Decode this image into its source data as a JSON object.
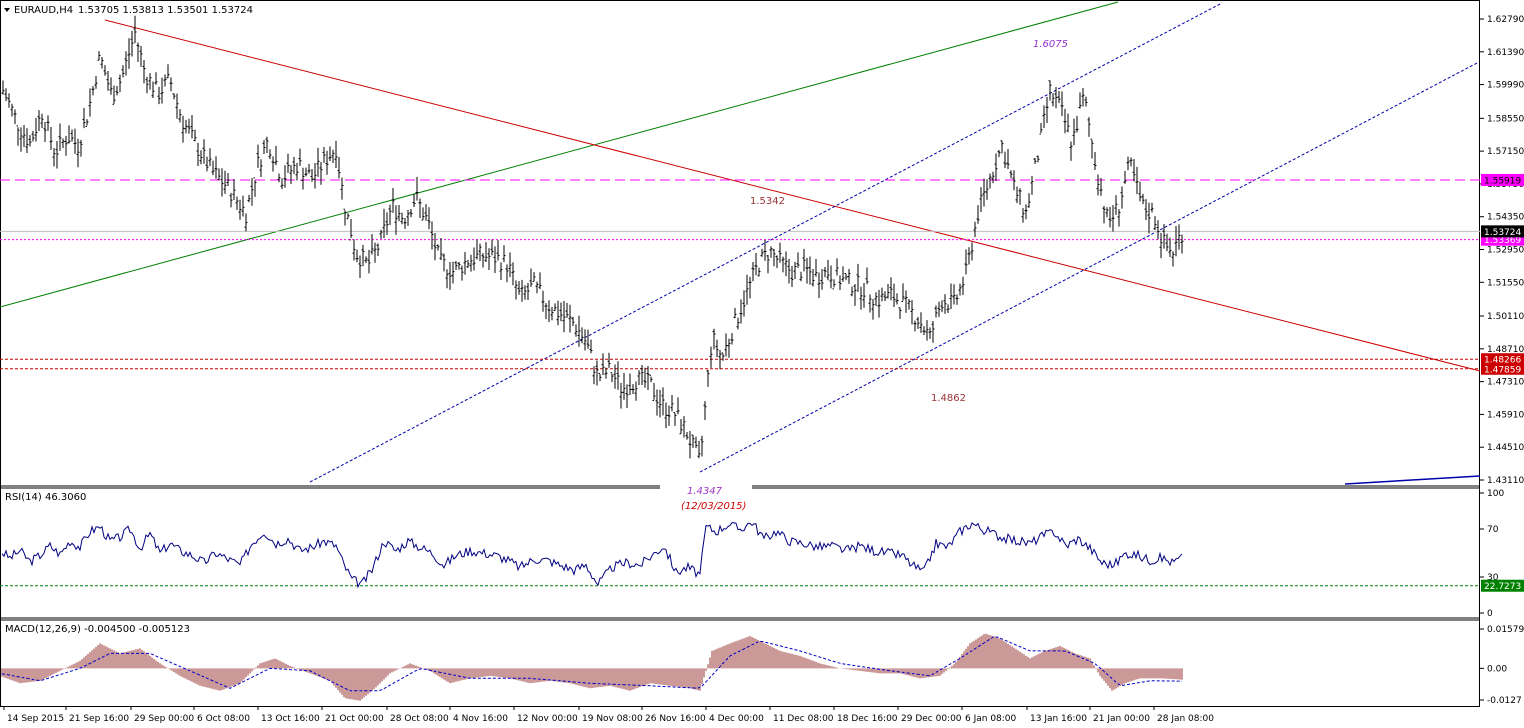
{
  "header": {
    "symbol": "EURAUD,H4",
    "ohlc": "1.53705 1.53813 1.53501 1.53724",
    "rsi_label": "RSI(14) 46.3060",
    "macd_label": "MACD(12,26,9) -0.004500 -0.005123"
  },
  "chart_data": {
    "type": "line",
    "instrument": "EURAUD",
    "timeframe": "H4",
    "price_axis": {
      "ylim": [
        1.4311,
        1.6279
      ],
      "ticks": [
        "1.62790",
        "1.61390",
        "1.59990",
        "1.58550",
        "1.57150",
        "1.55750",
        "1.54350",
        "1.52950",
        "1.51550",
        "1.50110",
        "1.48710",
        "1.47310",
        "1.45910",
        "1.44510",
        "1.43110"
      ],
      "tick_values": [
        1.6279,
        1.6139,
        1.5999,
        1.5855,
        1.5715,
        1.5575,
        1.5435,
        1.5295,
        1.5155,
        1.5011,
        1.4871,
        1.4731,
        1.4591,
        1.4451,
        1.4311
      ]
    },
    "x_ticks": [
      "14 Sep 2015",
      "21 Sep 16:00",
      "29 Sep 00:00",
      "6 Oct 08:00",
      "13 Oct 16:00",
      "21 Oct 00:00",
      "28 Oct 08:00",
      "4 Nov 16:00",
      "12 Nov 00:00",
      "19 Nov 08:00",
      "26 Nov 16:00",
      "4 Dec 00:00",
      "11 Dec 08:00",
      "18 Dec 16:00",
      "29 Dec 00:00",
      "6 Jan 08:00",
      "13 Jan 16:00",
      "21 Jan 00:00",
      "28 Jan 08:00"
    ],
    "price_path": [
      [
        0,
        1.6
      ],
      [
        8,
        1.593
      ],
      [
        18,
        1.583
      ],
      [
        30,
        1.575
      ],
      [
        42,
        1.588
      ],
      [
        55,
        1.571
      ],
      [
        68,
        1.578
      ],
      [
        78,
        1.574
      ],
      [
        88,
        1.588
      ],
      [
        100,
        1.612
      ],
      [
        112,
        1.595
      ],
      [
        122,
        1.603
      ],
      [
        135,
        1.622
      ],
      [
        145,
        1.605
      ],
      [
        158,
        1.596
      ],
      [
        170,
        1.602
      ],
      [
        182,
        1.585
      ],
      [
        196,
        1.574
      ],
      [
        212,
        1.563
      ],
      [
        228,
        1.556
      ],
      [
        246,
        1.545
      ],
      [
        258,
        1.566
      ],
      [
        268,
        1.576
      ],
      [
        282,
        1.56
      ],
      [
        298,
        1.566
      ],
      [
        312,
        1.56
      ],
      [
        326,
        1.568
      ],
      [
        336,
        1.573
      ],
      [
        344,
        1.55
      ],
      [
        356,
        1.528
      ],
      [
        368,
        1.523
      ],
      [
        380,
        1.532
      ],
      [
        392,
        1.548
      ],
      [
        404,
        1.543
      ],
      [
        416,
        1.552
      ],
      [
        428,
        1.541
      ],
      [
        440,
        1.524
      ],
      [
        454,
        1.52
      ],
      [
        468,
        1.525
      ],
      [
        482,
        1.527
      ],
      [
        496,
        1.526
      ],
      [
        508,
        1.523
      ],
      [
        520,
        1.509
      ],
      [
        534,
        1.514
      ],
      [
        548,
        1.506
      ],
      [
        560,
        1.502
      ],
      [
        574,
        1.498
      ],
      [
        586,
        1.49
      ],
      [
        598,
        1.475
      ],
      [
        610,
        1.478
      ],
      [
        622,
        1.47
      ],
      [
        636,
        1.474
      ],
      [
        650,
        1.472
      ],
      [
        662,
        1.463
      ],
      [
        674,
        1.46
      ],
      [
        686,
        1.452
      ],
      [
        700,
        1.438
      ],
      [
        706,
        1.466
      ],
      [
        712,
        1.492
      ],
      [
        722,
        1.483
      ],
      [
        734,
        1.497
      ],
      [
        746,
        1.51
      ],
      [
        758,
        1.523
      ],
      [
        770,
        1.529
      ],
      [
        780,
        1.524
      ],
      [
        792,
        1.52
      ],
      [
        804,
        1.521
      ],
      [
        816,
        1.518
      ],
      [
        828,
        1.52
      ],
      [
        840,
        1.517
      ],
      [
        852,
        1.515
      ],
      [
        864,
        1.513
      ],
      [
        878,
        1.508
      ],
      [
        892,
        1.51
      ],
      [
        904,
        1.506
      ],
      [
        918,
        1.5
      ],
      [
        930,
        1.492
      ],
      [
        942,
        1.508
      ],
      [
        954,
        1.506
      ],
      [
        966,
        1.519
      ],
      [
        978,
        1.545
      ],
      [
        990,
        1.56
      ],
      [
        1002,
        1.574
      ],
      [
        1014,
        1.556
      ],
      [
        1026,
        1.545
      ],
      [
        1038,
        1.57
      ],
      [
        1050,
        1.597
      ],
      [
        1060,
        1.59
      ],
      [
        1072,
        1.575
      ],
      [
        1084,
        1.595
      ],
      [
        1096,
        1.565
      ],
      [
        1108,
        1.541
      ],
      [
        1118,
        1.547
      ],
      [
        1130,
        1.566
      ],
      [
        1142,
        1.548
      ],
      [
        1154,
        1.544
      ],
      [
        1164,
        1.532
      ],
      [
        1172,
        1.528
      ],
      [
        1182,
        1.537
      ]
    ],
    "horizontal_lines": [
      {
        "value": 1.55919,
        "label": "1.55919",
        "style": "dashed-magenta"
      },
      {
        "value": 1.53369,
        "label": "1.53369",
        "style": "dotted-magenta"
      },
      {
        "value": 1.53724,
        "label": "1.53724",
        "style": "current-price"
      },
      {
        "value": 1.48266,
        "label": "1.48266",
        "style": "dashed-red"
      },
      {
        "value": 1.47859,
        "label": "1.47859",
        "style": "dashed-red"
      }
    ],
    "annotations": [
      {
        "text": "1.6075",
        "color": "#9933cc",
        "italic": true
      },
      {
        "text": "1.5342",
        "color": "#993333",
        "italic": false
      },
      {
        "text": "1.4862",
        "color": "#993333",
        "italic": false
      },
      {
        "text": "1.4347",
        "color": "#9933cc",
        "italic": true
      },
      {
        "text": "(12/03/2015)",
        "color": "#cc0000",
        "italic": true
      }
    ],
    "rsi": {
      "ticks": [
        "100",
        "70",
        "30",
        "0"
      ],
      "tick_values": [
        100,
        70,
        30,
        0
      ],
      "level": 22.7273,
      "level_label": "22.7273",
      "current": 46.306,
      "path": [
        [
          0,
          52
        ],
        [
          10,
          46
        ],
        [
          20,
          52
        ],
        [
          30,
          43
        ],
        [
          40,
          48
        ],
        [
          50,
          56
        ],
        [
          60,
          49
        ],
        [
          70,
          60
        ],
        [
          80,
          55
        ],
        [
          90,
          68
        ],
        [
          100,
          72
        ],
        [
          110,
          60
        ],
        [
          120,
          63
        ],
        [
          130,
          70
        ],
        [
          140,
          54
        ],
        [
          150,
          66
        ],
        [
          160,
          50
        ],
        [
          170,
          58
        ],
        [
          180,
          52
        ],
        [
          192,
          48
        ],
        [
          204,
          42
        ],
        [
          216,
          50
        ],
        [
          228,
          45
        ],
        [
          240,
          40
        ],
        [
          252,
          58
        ],
        [
          264,
          68
        ],
        [
          276,
          58
        ],
        [
          288,
          62
        ],
        [
          300,
          52
        ],
        [
          312,
          55
        ],
        [
          324,
          60
        ],
        [
          336,
          56
        ],
        [
          344,
          40
        ],
        [
          352,
          28
        ],
        [
          362,
          24
        ],
        [
          372,
          36
        ],
        [
          384,
          60
        ],
        [
          396,
          52
        ],
        [
          408,
          60
        ],
        [
          420,
          55
        ],
        [
          432,
          50
        ],
        [
          444,
          40
        ],
        [
          456,
          48
        ],
        [
          470,
          52
        ],
        [
          484,
          50
        ],
        [
          496,
          48
        ],
        [
          508,
          44
        ],
        [
          520,
          38
        ],
        [
          534,
          45
        ],
        [
          548,
          44
        ],
        [
          560,
          40
        ],
        [
          574,
          36
        ],
        [
          586,
          40
        ],
        [
          598,
          24
        ],
        [
          612,
          38
        ],
        [
          626,
          42
        ],
        [
          640,
          40
        ],
        [
          652,
          48
        ],
        [
          664,
          56
        ],
        [
          676,
          34
        ],
        [
          688,
          38
        ],
        [
          700,
          32
        ],
        [
          706,
          72
        ],
        [
          716,
          68
        ],
        [
          728,
          74
        ],
        [
          740,
          70
        ],
        [
          752,
          76
        ],
        [
          764,
          62
        ],
        [
          776,
          68
        ],
        [
          790,
          60
        ],
        [
          804,
          58
        ],
        [
          818,
          55
        ],
        [
          832,
          56
        ],
        [
          846,
          52
        ],
        [
          860,
          56
        ],
        [
          874,
          52
        ],
        [
          888,
          50
        ],
        [
          902,
          48
        ],
        [
          912,
          40
        ],
        [
          924,
          34
        ],
        [
          936,
          58
        ],
        [
          948,
          55
        ],
        [
          960,
          68
        ],
        [
          972,
          75
        ],
        [
          982,
          70
        ],
        [
          994,
          66
        ],
        [
          1006,
          62
        ],
        [
          1018,
          60
        ],
        [
          1030,
          58
        ],
        [
          1042,
          64
        ],
        [
          1054,
          68
        ],
        [
          1066,
          56
        ],
        [
          1078,
          62
        ],
        [
          1090,
          54
        ],
        [
          1102,
          42
        ],
        [
          1114,
          40
        ],
        [
          1126,
          50
        ],
        [
          1138,
          48
        ],
        [
          1150,
          44
        ],
        [
          1162,
          46
        ],
        [
          1172,
          42
        ],
        [
          1182,
          46
        ]
      ]
    },
    "macd": {
      "ticks": [
        "0.01579",
        "0.00",
        "-0.0127"
      ],
      "tick_values": [
        0.01579,
        0,
        -0.0127
      ],
      "current_main": -0.0045,
      "current_signal": -0.005123,
      "hist_path": [
        [
          0,
          -0.003
        ],
        [
          20,
          -0.006
        ],
        [
          40,
          -0.005
        ],
        [
          60,
          -0.001
        ],
        [
          80,
          0.003
        ],
        [
          100,
          0.01
        ],
        [
          120,
          0.006
        ],
        [
          140,
          0.008
        ],
        [
          160,
          0.002
        ],
        [
          180,
          -0.003
        ],
        [
          200,
          -0.007
        ],
        [
          220,
          -0.009
        ],
        [
          240,
          -0.006
        ],
        [
          260,
          0.002
        ],
        [
          275,
          0.004
        ],
        [
          290,
          0.001
        ],
        [
          310,
          -0.002
        ],
        [
          330,
          -0.005
        ],
        [
          345,
          -0.012
        ],
        [
          360,
          -0.013
        ],
        [
          375,
          -0.008
        ],
        [
          390,
          -0.002
        ],
        [
          410,
          0.002
        ],
        [
          430,
          -0.001
        ],
        [
          450,
          -0.006
        ],
        [
          470,
          -0.004
        ],
        [
          490,
          -0.003
        ],
        [
          510,
          -0.004
        ],
        [
          530,
          -0.006
        ],
        [
          550,
          -0.005
        ],
        [
          570,
          -0.006
        ],
        [
          590,
          -0.008
        ],
        [
          610,
          -0.007
        ],
        [
          630,
          -0.009
        ],
        [
          650,
          -0.006
        ],
        [
          670,
          -0.007
        ],
        [
          690,
          -0.008
        ],
        [
          700,
          -0.009
        ],
        [
          712,
          0.007
        ],
        [
          730,
          0.01
        ],
        [
          750,
          0.013
        ],
        [
          765,
          0.01
        ],
        [
          780,
          0.007
        ],
        [
          800,
          0.005
        ],
        [
          820,
          0.002
        ],
        [
          840,
          0.0
        ],
        [
          860,
          -0.001
        ],
        [
          880,
          -0.002
        ],
        [
          900,
          -0.002
        ],
        [
          920,
          -0.004
        ],
        [
          940,
          -0.003
        ],
        [
          955,
          0.002
        ],
        [
          970,
          0.01
        ],
        [
          985,
          0.014
        ],
        [
          1000,
          0.012
        ],
        [
          1015,
          0.008
        ],
        [
          1030,
          0.004
        ],
        [
          1045,
          0.007
        ],
        [
          1060,
          0.009
        ],
        [
          1075,
          0.006
        ],
        [
          1090,
          0.004
        ],
        [
          1100,
          -0.003
        ],
        [
          1112,
          -0.009
        ],
        [
          1125,
          -0.006
        ],
        [
          1140,
          -0.004
        ],
        [
          1160,
          -0.004
        ],
        [
          1182,
          -0.0045
        ]
      ],
      "signal_path": [
        [
          0,
          -0.002
        ],
        [
          40,
          -0.005
        ],
        [
          80,
          0.0
        ],
        [
          110,
          0.006
        ],
        [
          150,
          0.006
        ],
        [
          190,
          -0.001
        ],
        [
          230,
          -0.008
        ],
        [
          270,
          0.0
        ],
        [
          310,
          -0.001
        ],
        [
          350,
          -0.009
        ],
        [
          380,
          -0.009
        ],
        [
          420,
          0.0
        ],
        [
          470,
          -0.004
        ],
        [
          530,
          -0.004
        ],
        [
          590,
          -0.006
        ],
        [
          650,
          -0.007
        ],
        [
          700,
          -0.008
        ],
        [
          730,
          0.005
        ],
        [
          760,
          0.011
        ],
        [
          800,
          0.007
        ],
        [
          840,
          0.002
        ],
        [
          890,
          -0.001
        ],
        [
          930,
          -0.003
        ],
        [
          960,
          0.004
        ],
        [
          995,
          0.013
        ],
        [
          1030,
          0.007
        ],
        [
          1065,
          0.007
        ],
        [
          1095,
          0.002
        ],
        [
          1120,
          -0.007
        ],
        [
          1150,
          -0.005
        ],
        [
          1182,
          -0.005123
        ]
      ]
    }
  },
  "colors": {
    "bar": "#000000",
    "green_trend": "#008000",
    "red_trend": "#cc0000",
    "channel": "#0000aa",
    "support_magenta": "#ff00ff",
    "red_levels": "#cc0000",
    "rsi_line": "#000080",
    "rsi_level": "#008000",
    "macd_hist": "#993333",
    "macd_signal": "#0000cc"
  }
}
